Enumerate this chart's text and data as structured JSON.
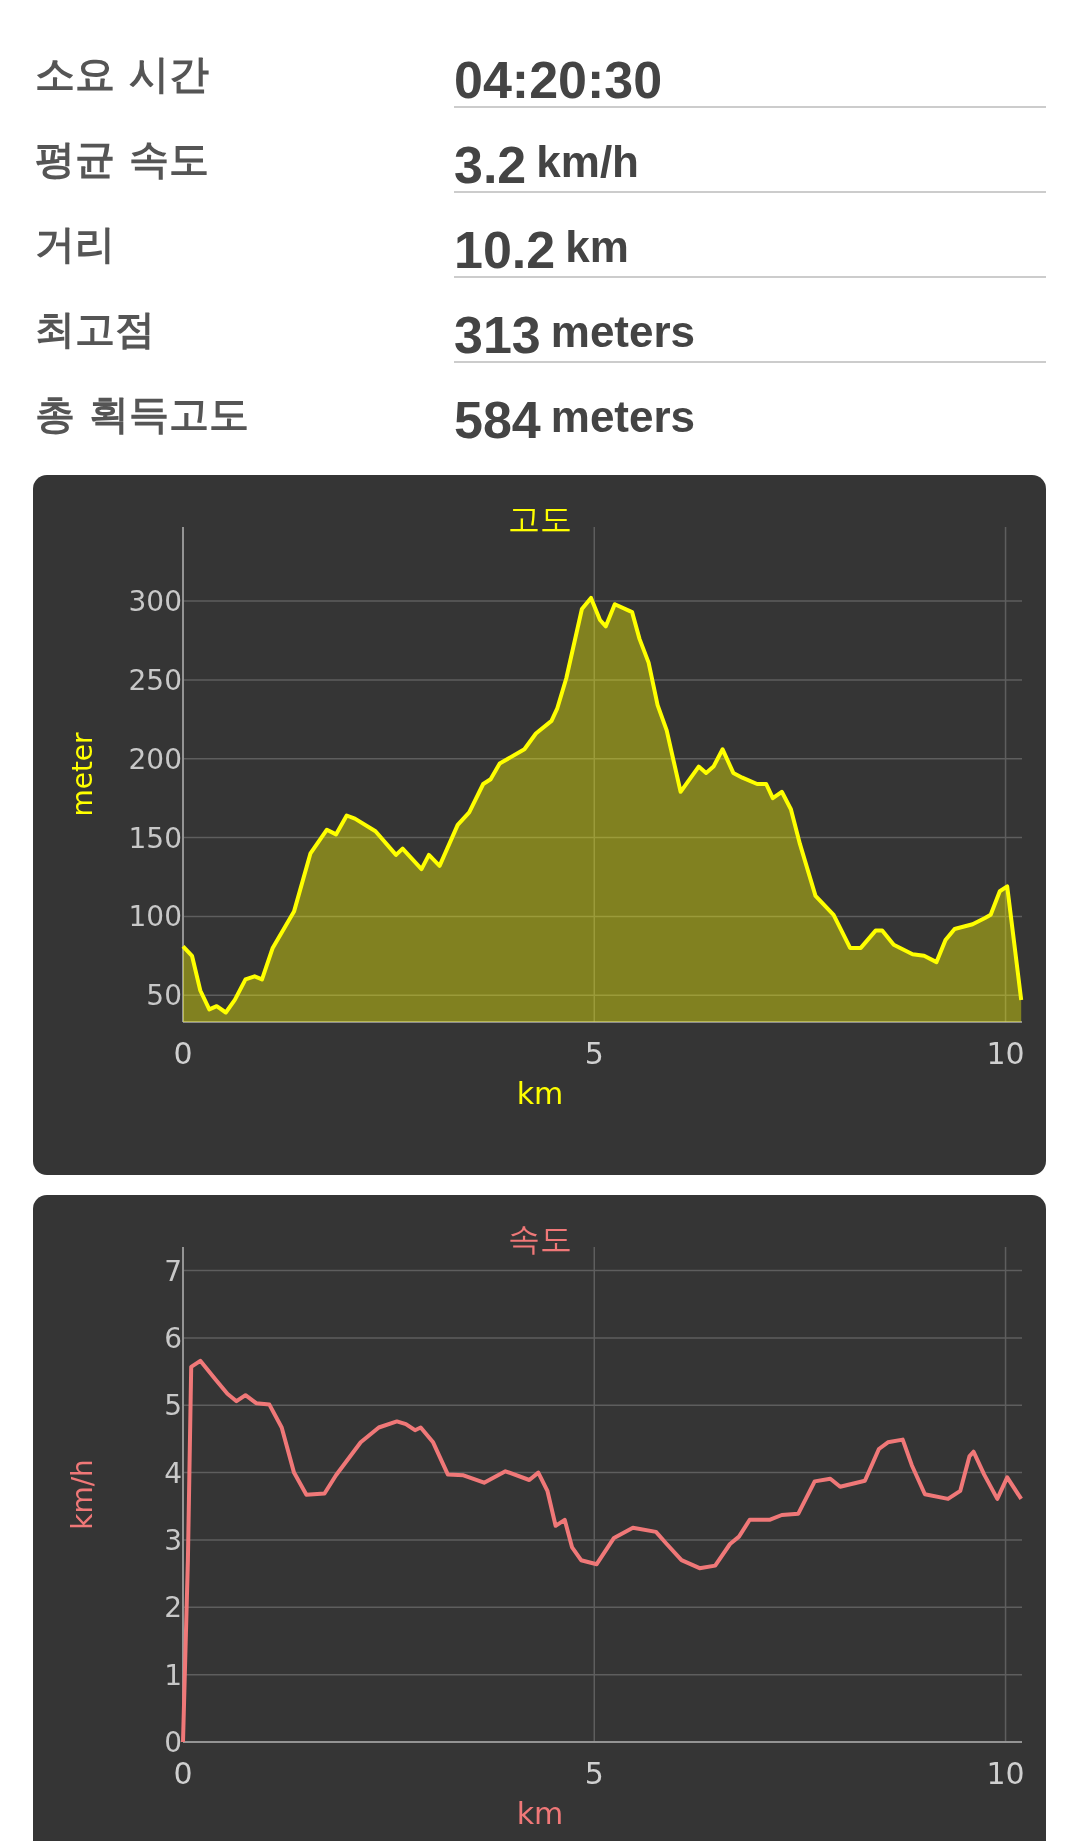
{
  "chart_data": [
    {
      "type": "other",
      "categories": [
        "소요 시간",
        "평균 속도",
        "거리",
        "최고점",
        "총 획득고도"
      ],
      "value_labels": [
        "04:20:30",
        "3.2 km/h",
        "10.2 km",
        "313 meters",
        "584 meters"
      ]
    },
    {
      "type": "area",
      "title": "고도",
      "xlabel": "km",
      "ylabel": "meter",
      "color": "#ffff00",
      "xlim": [
        0,
        10.2
      ],
      "ylim": [
        33,
        347
      ],
      "xticks": [
        0,
        5,
        10
      ],
      "yticks": [
        50,
        100,
        150,
        200,
        250,
        300
      ],
      "grid": true,
      "x": [
        0,
        0.11,
        0.21,
        0.32,
        0.41,
        0.52,
        0.63,
        0.76,
        0.87,
        0.96,
        1.09,
        1.35,
        1.55,
        1.75,
        1.86,
        1.99,
        2.09,
        2.34,
        2.59,
        2.67,
        2.9,
        2.99,
        3.12,
        3.34,
        3.48,
        3.65,
        3.74,
        3.85,
        4.15,
        4.29,
        4.48,
        4.55,
        4.66,
        4.85,
        4.96,
        5.07,
        5.14,
        5.25,
        5.46,
        5.55,
        5.66,
        5.77,
        5.88,
        6.05,
        6.27,
        6.36,
        6.45,
        6.56,
        6.69,
        6.8,
        6.98,
        7.09,
        7.17,
        7.28,
        7.39,
        7.5,
        7.69,
        7.91,
        8.11,
        8.24,
        8.42,
        8.5,
        8.64,
        8.87,
        9.01,
        9.16,
        9.27,
        9.38,
        9.6,
        9.75,
        9.82,
        9.93,
        10.02,
        10.19
      ],
      "values": [
        81,
        75,
        53,
        41,
        43,
        39,
        47,
        60,
        62,
        60,
        80,
        103,
        140,
        155,
        152,
        164,
        162,
        154,
        139,
        143,
        130,
        139,
        132,
        158,
        166,
        184,
        187,
        197,
        206,
        216,
        224,
        232,
        251,
        295,
        302,
        288,
        284,
        298,
        293,
        276,
        261,
        234,
        218,
        179,
        195,
        191,
        195,
        206,
        191,
        188,
        184,
        184,
        175,
        179,
        168,
        146,
        113,
        101,
        80,
        80,
        91,
        91,
        82,
        76,
        75,
        71,
        85,
        92,
        95,
        99,
        101,
        116,
        119,
        47
      ]
    },
    {
      "type": "line",
      "title": "속도",
      "xlabel": "km",
      "ylabel": "km/h",
      "color": "#f07878",
      "xlim": [
        0,
        10.2
      ],
      "ylim": [
        0,
        7.35
      ],
      "xticks": [
        0,
        5,
        10
      ],
      "yticks": [
        0,
        1,
        2,
        3,
        4,
        5,
        6,
        7
      ],
      "grid": true,
      "x": [
        0,
        0.06,
        0.1,
        0.21,
        0.39,
        0.54,
        0.65,
        0.76,
        0.89,
        1.05,
        1.2,
        1.35,
        1.5,
        1.72,
        1.86,
        2.16,
        2.38,
        2.6,
        2.71,
        2.82,
        2.89,
        3.04,
        3.22,
        3.41,
        3.66,
        3.92,
        4.21,
        4.32,
        4.43,
        4.53,
        4.64,
        4.73,
        4.84,
        5.03,
        5.24,
        5.47,
        5.75,
        5.88,
        6.06,
        6.28,
        6.47,
        6.65,
        6.76,
        6.89,
        7.13,
        7.28,
        7.48,
        7.68,
        7.87,
        7.99,
        8.29,
        8.46,
        8.57,
        8.75,
        8.86,
        9.02,
        9.3,
        9.45,
        9.56,
        9.61,
        9.74,
        9.9,
        10.02,
        10.19
      ],
      "values": [
        0,
        2.7,
        5.57,
        5.66,
        5.39,
        5.17,
        5.06,
        5.15,
        5.03,
        5.01,
        4.67,
        4.0,
        3.67,
        3.69,
        3.96,
        4.45,
        4.67,
        4.76,
        4.72,
        4.63,
        4.67,
        4.45,
        3.97,
        3.96,
        3.85,
        4.02,
        3.89,
        4.0,
        3.73,
        3.21,
        3.3,
        2.89,
        2.7,
        2.64,
        3.03,
        3.18,
        3.12,
        2.94,
        2.7,
        2.58,
        2.62,
        2.94,
        3.05,
        3.3,
        3.3,
        3.37,
        3.39,
        3.87,
        3.91,
        3.79,
        3.88,
        4.35,
        4.45,
        4.49,
        4.11,
        3.68,
        3.61,
        3.73,
        4.24,
        4.31,
        3.97,
        3.61,
        3.93,
        3.61
      ]
    }
  ]
}
